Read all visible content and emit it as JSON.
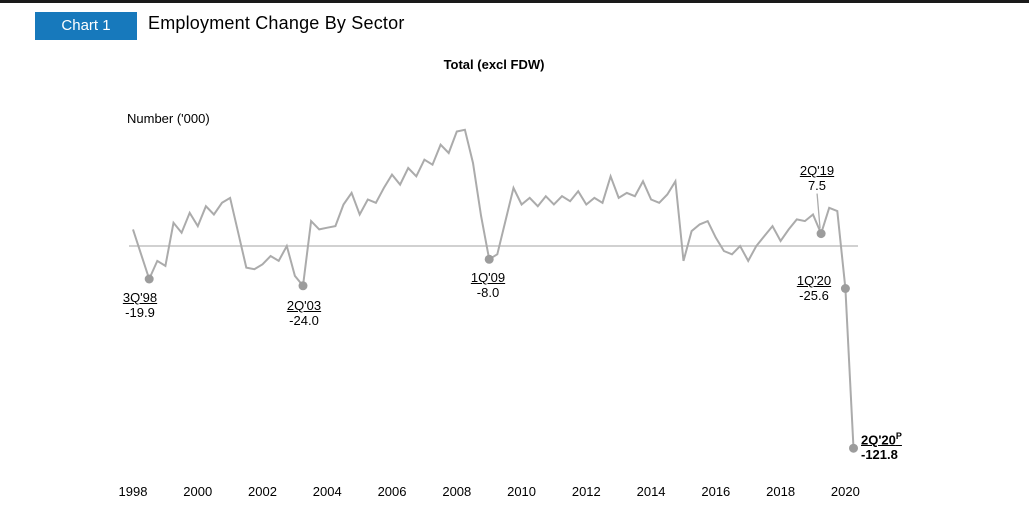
{
  "header": {
    "badge_label": "Chart 1",
    "badge_color": "#1779BC",
    "title": "Employment Change By Sector"
  },
  "chart_data": {
    "type": "line",
    "title": "Total (excl FDW)",
    "ylabel": "Number ('000)",
    "xlabel": "",
    "frequency": "quarterly",
    "x_start": "1Q 1998",
    "x_end": "2Q 2020",
    "x_tick_labels": [
      "1998",
      "2000",
      "2002",
      "2004",
      "2006",
      "2008",
      "2010",
      "2012",
      "2014",
      "2016",
      "2018",
      "2020"
    ],
    "ylim": [
      -130,
      80
    ],
    "grid": false,
    "legend": false,
    "zero_baseline": true,
    "line_color": "#ababab",
    "marker_color": "#9c9c9c",
    "zero_line_color": "#c2c2c2",
    "values": [
      10,
      -5,
      -19.9,
      -9,
      -12,
      14,
      8,
      20,
      12,
      24,
      19,
      26,
      29,
      8,
      -13,
      -14,
      -11,
      -6,
      -9,
      0,
      -18,
      -24.0,
      15,
      10,
      11,
      12,
      25,
      32,
      19,
      28,
      26,
      35,
      43,
      37,
      47,
      42,
      52,
      49,
      61,
      56,
      69,
      70,
      50,
      18,
      -8.0,
      -5,
      15,
      35,
      25,
      29,
      24,
      30,
      25,
      30,
      27,
      33,
      25,
      29,
      26,
      42,
      29,
      32,
      30,
      39,
      28,
      26,
      31,
      39,
      -9,
      9,
      13,
      15,
      5,
      -3,
      -5,
      0,
      -9,
      0,
      6,
      12,
      3,
      10,
      16,
      15,
      19,
      7.5,
      23,
      21,
      -25.6,
      -121.8
    ],
    "annotations": [
      {
        "label": "3Q'98",
        "value": "-19.9",
        "q_index": 2
      },
      {
        "label": "2Q'03",
        "value": "-24.0",
        "q_index": 21
      },
      {
        "label": "1Q'09",
        "value": "-8.0",
        "q_index": 44
      },
      {
        "label": "2Q'19",
        "value": "7.5",
        "q_index": 85,
        "leader": true
      },
      {
        "label": "1Q'20",
        "value": "-25.6",
        "q_index": 88
      },
      {
        "label": "2Q'20",
        "superscript": "P",
        "value": "-121.8",
        "q_index": 89
      }
    ]
  }
}
